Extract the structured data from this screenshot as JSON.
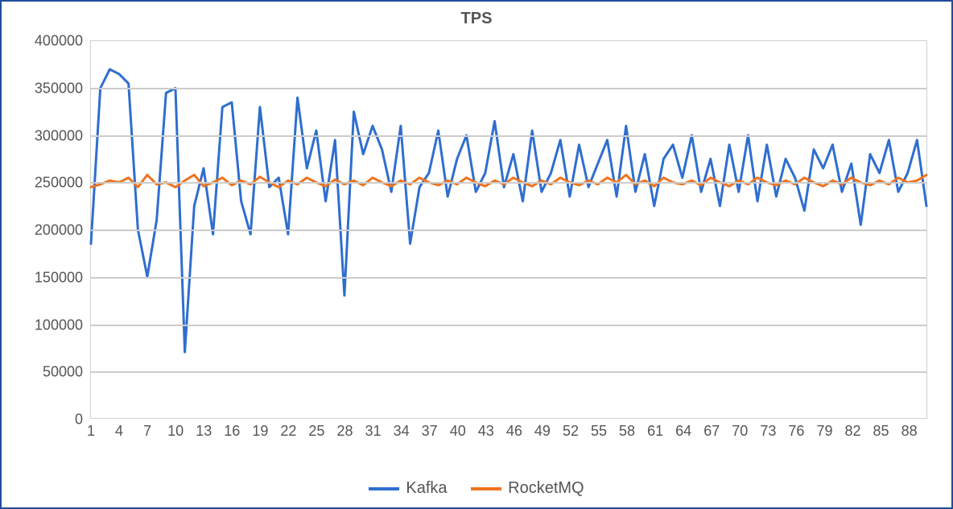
{
  "chart": {
    "type": "line",
    "title": "TPS",
    "title_fontsize": 20,
    "title_color": "#555555",
    "background_color": "#ffffff",
    "outer_border_color": "#1f4e9c",
    "outer_border_width": 2,
    "plot_border_color": "#d0d0d0",
    "grid_color": "#cccccc",
    "grid_line_width": 2,
    "axis_label_color": "#555555",
    "axis_label_fontsize": 18,
    "legend_fontsize": 20,
    "ylim": [
      0,
      400000
    ],
    "ytick_step": 50000,
    "y_ticks": [
      0,
      50000,
      100000,
      150000,
      200000,
      250000,
      300000,
      350000,
      400000
    ],
    "xlim": [
      1,
      90
    ],
    "x_ticks": [
      1,
      4,
      7,
      10,
      13,
      16,
      19,
      22,
      25,
      28,
      31,
      34,
      37,
      40,
      43,
      46,
      49,
      52,
      55,
      58,
      61,
      64,
      67,
      70,
      73,
      76,
      79,
      82,
      85,
      88
    ],
    "x_values": [
      1,
      2,
      3,
      4,
      5,
      6,
      7,
      8,
      9,
      10,
      11,
      12,
      13,
      14,
      15,
      16,
      17,
      18,
      19,
      20,
      21,
      22,
      23,
      24,
      25,
      26,
      27,
      28,
      29,
      30,
      31,
      32,
      33,
      34,
      35,
      36,
      37,
      38,
      39,
      40,
      41,
      42,
      43,
      44,
      45,
      46,
      47,
      48,
      49,
      50,
      51,
      52,
      53,
      54,
      55,
      56,
      57,
      58,
      59,
      60,
      61,
      62,
      63,
      64,
      65,
      66,
      67,
      68,
      69,
      70,
      71,
      72,
      73,
      74,
      75,
      76,
      77,
      78,
      79,
      80,
      81,
      82,
      83,
      84,
      85,
      86,
      87,
      88,
      89,
      90
    ],
    "series": [
      {
        "name": "Kafka",
        "color": "#2e6ecf",
        "line_width": 3,
        "marker": "none",
        "values": [
          185000,
          350000,
          370000,
          365000,
          355000,
          200000,
          150000,
          210000,
          345000,
          350000,
          70000,
          225000,
          265000,
          195000,
          330000,
          335000,
          230000,
          195000,
          330000,
          245000,
          255000,
          195000,
          340000,
          265000,
          305000,
          230000,
          295000,
          130000,
          325000,
          280000,
          310000,
          285000,
          240000,
          310000,
          185000,
          245000,
          260000,
          305000,
          235000,
          275000,
          300000,
          240000,
          260000,
          315000,
          245000,
          280000,
          230000,
          305000,
          240000,
          260000,
          295000,
          235000,
          290000,
          245000,
          270000,
          295000,
          235000,
          310000,
          240000,
          280000,
          225000,
          275000,
          290000,
          255000,
          300000,
          240000,
          275000,
          225000,
          290000,
          240000,
          300000,
          230000,
          290000,
          235000,
          275000,
          255000,
          220000,
          285000,
          265000,
          290000,
          240000,
          270000,
          205000,
          280000,
          260000,
          295000,
          240000,
          260000,
          295000,
          225000
        ]
      },
      {
        "name": "RocketMQ",
        "color": "#ee7420",
        "line_width": 3,
        "marker": "none",
        "values": [
          245000,
          248000,
          252000,
          250000,
          255000,
          245000,
          258000,
          248000,
          250000,
          245000,
          252000,
          258000,
          246000,
          250000,
          255000,
          247000,
          252000,
          248000,
          256000,
          250000,
          245000,
          252000,
          248000,
          255000,
          250000,
          246000,
          253000,
          248000,
          252000,
          247000,
          255000,
          250000,
          246000,
          252000,
          248000,
          255000,
          250000,
          247000,
          252000,
          248000,
          255000,
          250000,
          246000,
          252000,
          248000,
          255000,
          250000,
          246000,
          252000,
          248000,
          255000,
          250000,
          247000,
          252000,
          248000,
          255000,
          250000,
          258000,
          248000,
          252000,
          246000,
          255000,
          250000,
          248000,
          252000,
          247000,
          255000,
          250000,
          246000,
          252000,
          248000,
          255000,
          250000,
          247000,
          252000,
          248000,
          255000,
          250000,
          246000,
          252000,
          248000,
          255000,
          250000,
          247000,
          252000,
          248000,
          255000,
          250000,
          252000,
          258000
        ]
      }
    ]
  }
}
